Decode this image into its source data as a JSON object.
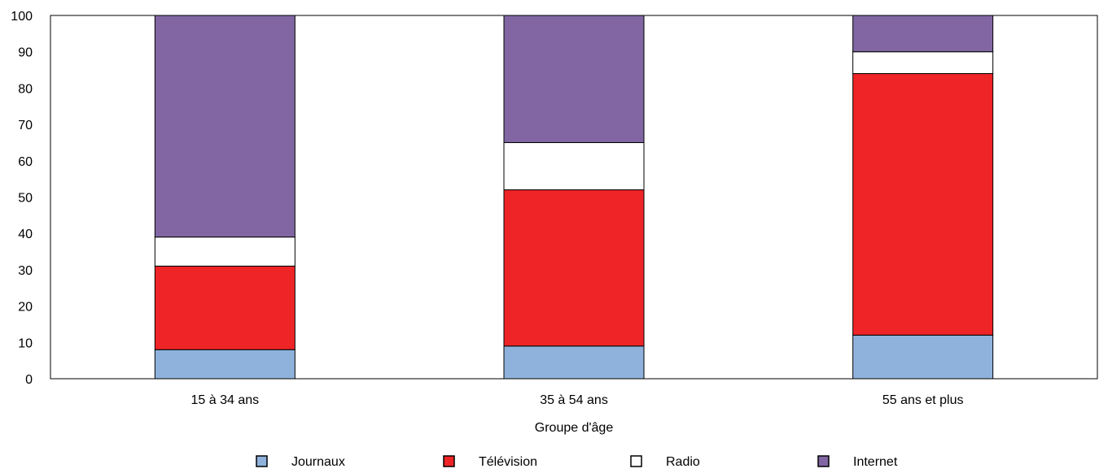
{
  "chart_data": {
    "type": "bar",
    "stacked": true,
    "title": "",
    "xlabel": "Groupe d'âge",
    "ylabel": "",
    "ylim": [
      0,
      100
    ],
    "yticks": [
      0,
      10,
      20,
      30,
      40,
      50,
      60,
      70,
      80,
      90,
      100
    ],
    "categories": [
      "15 à 34 ans",
      "35 à 54 ans",
      "55 ans et plus"
    ],
    "series": [
      {
        "name": "Journaux",
        "color": "#8fb2dc",
        "values": [
          8,
          9,
          12
        ]
      },
      {
        "name": "Télévision",
        "color": "#ee2427",
        "values": [
          23,
          43,
          72
        ]
      },
      {
        "name": "Radio",
        "color": "#ffffff",
        "values": [
          8,
          13,
          6
        ]
      },
      {
        "name": "Internet",
        "color": "#8166a3",
        "values": [
          61,
          35,
          10
        ]
      }
    ],
    "legend_position": "bottom",
    "grid": false
  }
}
